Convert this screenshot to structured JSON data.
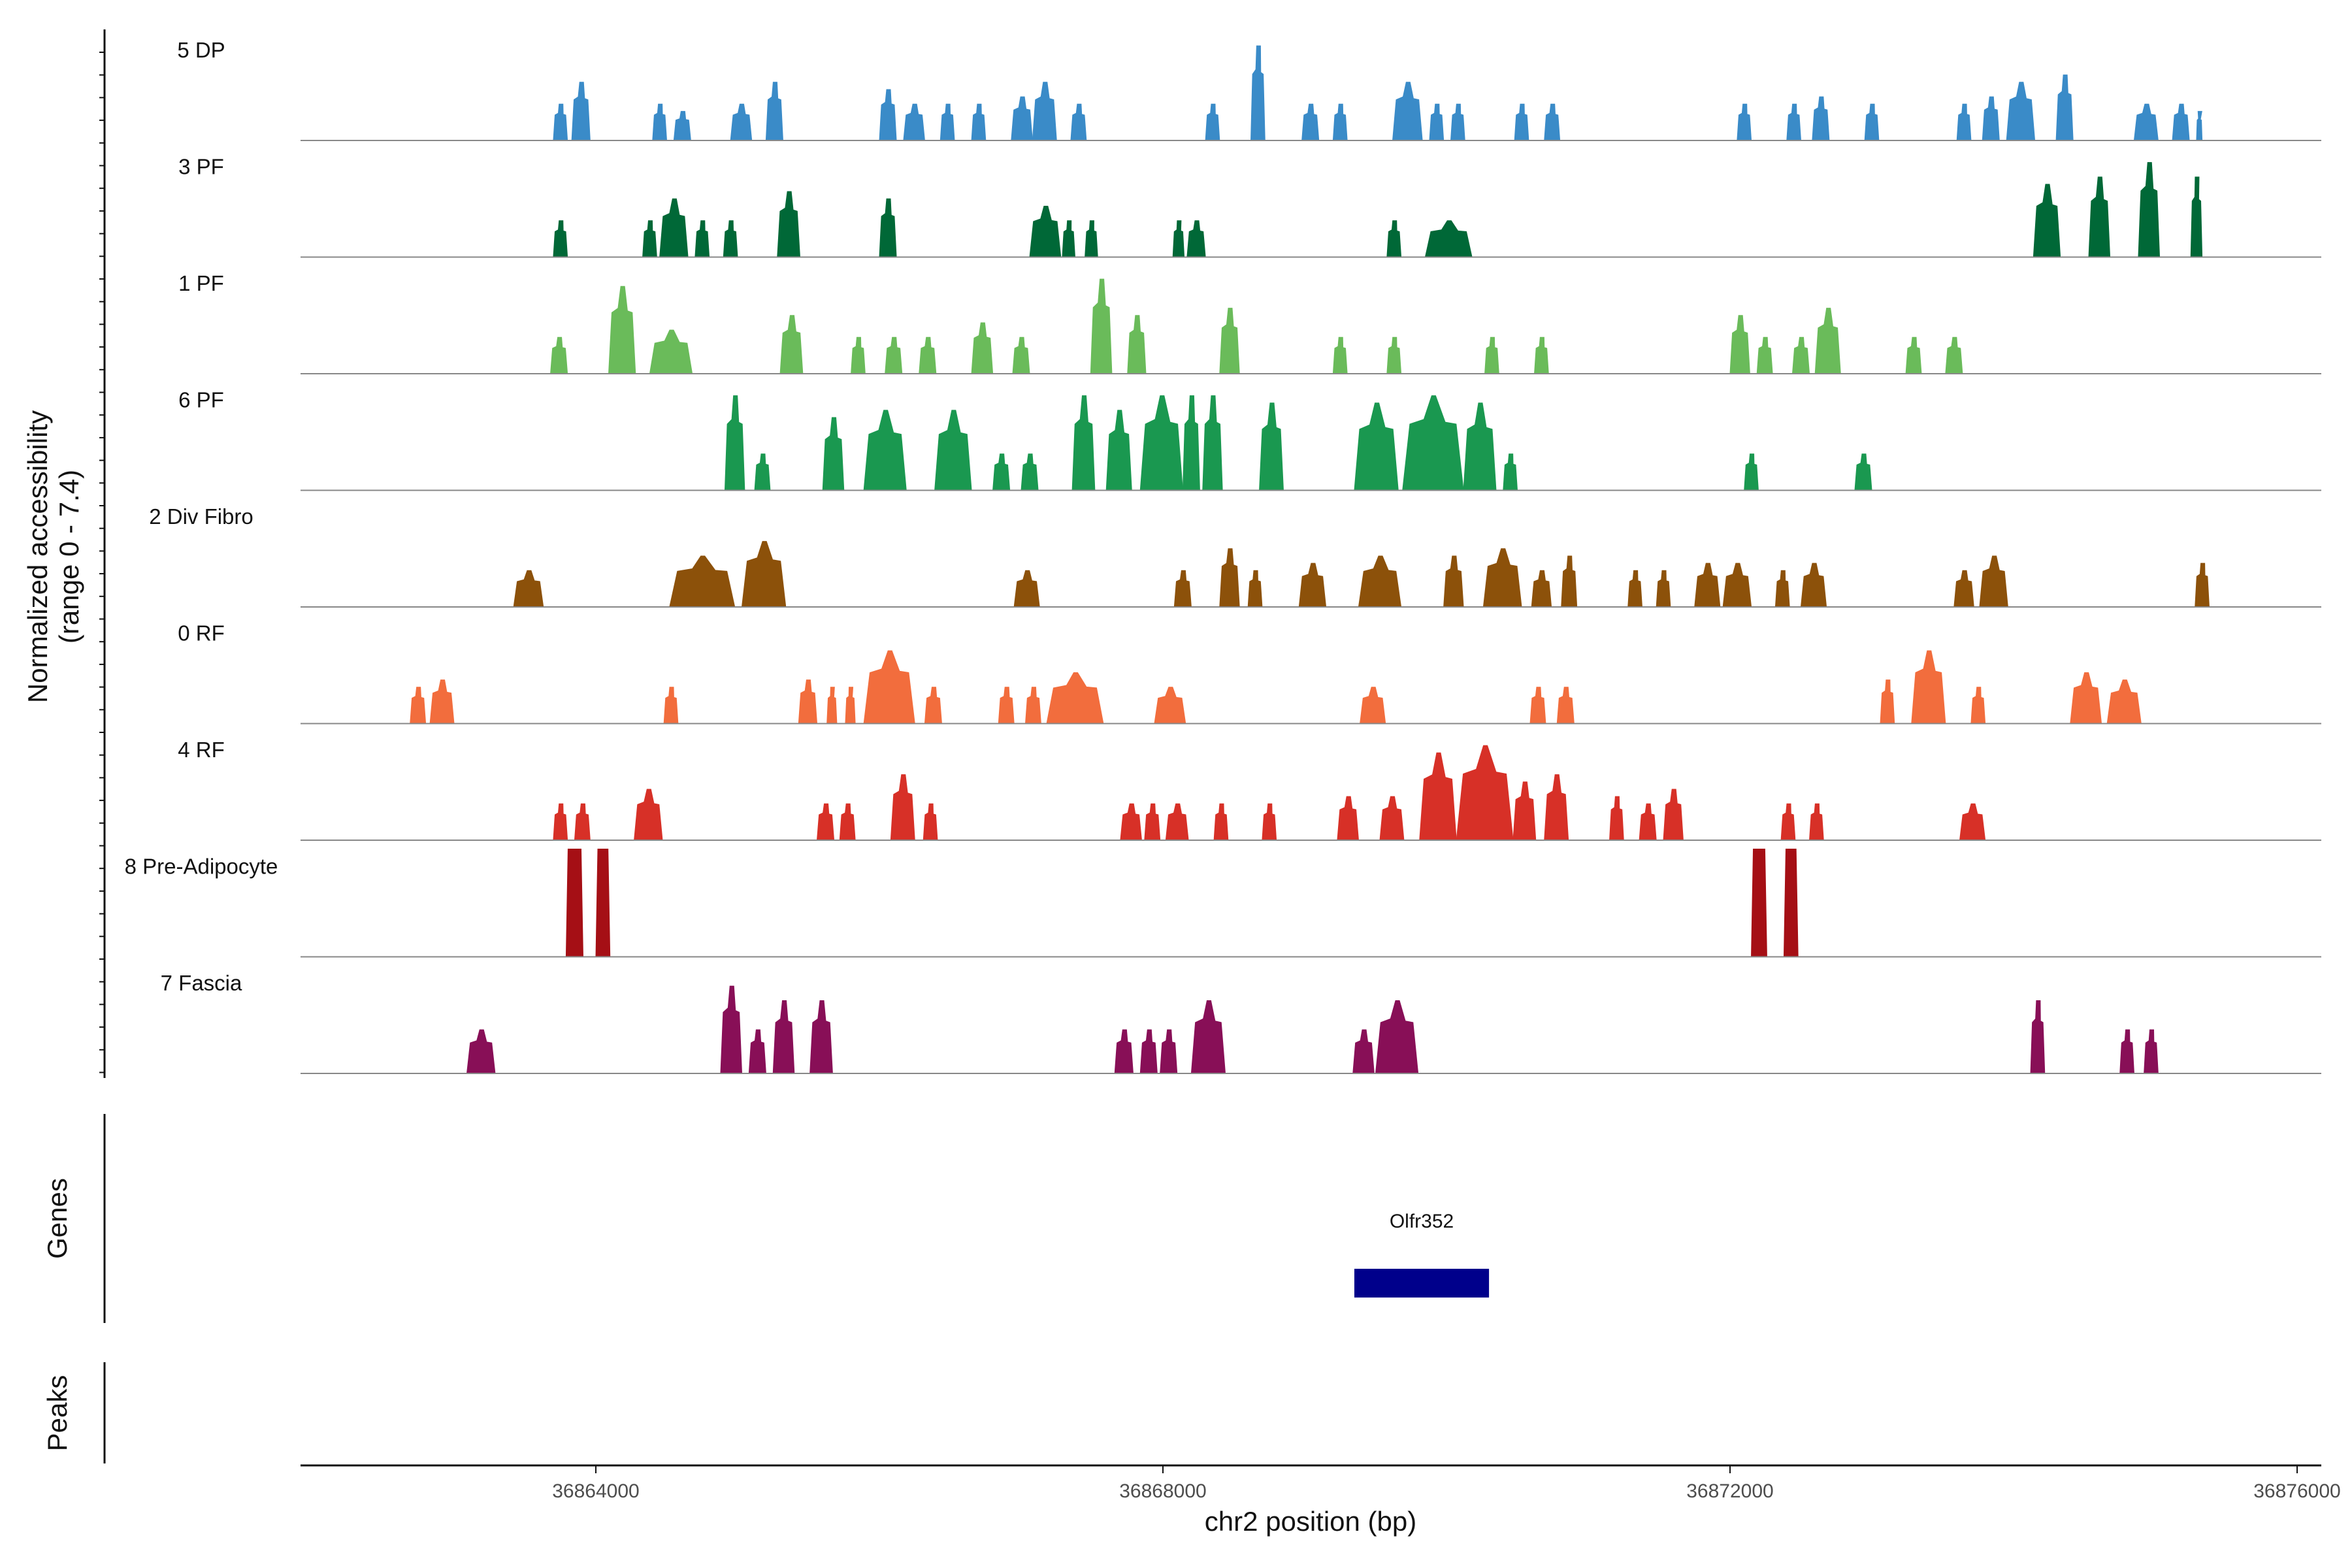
{
  "chart_data": {
    "type": "area",
    "title": "",
    "chromosome": "chr2",
    "xlabel": "chr2 position (bp)",
    "ylabel": "Normalized accessibility",
    "ylabel_range": "(range 0 - 7.4)",
    "xlim": [
      36862000,
      36876000
    ],
    "ylim": [
      0,
      7.4
    ],
    "x_ticks": [
      36864000,
      36868000,
      36872000,
      36876000
    ],
    "x_tick_labels": [
      "36864000",
      "36868000",
      "36872000",
      "36876000"
    ],
    "series": [
      {
        "name": "5 DP",
        "color": "#3A8BC8",
        "peaks": [
          [
            36863700,
            36863800,
            2.5
          ],
          [
            36863830,
            36863960,
            4.0
          ],
          [
            36864400,
            36864500,
            2.5
          ],
          [
            36864550,
            36864670,
            2.0
          ],
          [
            36864950,
            36865100,
            2.5
          ],
          [
            36865200,
            36865320,
            4.0
          ],
          [
            36866000,
            36866120,
            3.5
          ],
          [
            36866170,
            36866320,
            2.5
          ],
          [
            36866430,
            36866530,
            2.5
          ],
          [
            36866650,
            36866750,
            2.5
          ],
          [
            36866930,
            36867080,
            3.0
          ],
          [
            36867080,
            36867250,
            4.0
          ],
          [
            36867350,
            36867460,
            2.5
          ],
          [
            36868300,
            36868400,
            2.5
          ],
          [
            36868620,
            36868720,
            6.5
          ],
          [
            36868980,
            36869100,
            2.5
          ],
          [
            36869200,
            36869300,
            2.5
          ],
          [
            36869620,
            36869830,
            4.0
          ],
          [
            36869880,
            36869980,
            2.5
          ],
          [
            36870030,
            36870130,
            2.5
          ],
          [
            36870480,
            36870580,
            2.5
          ],
          [
            36870690,
            36870800,
            2.5
          ],
          [
            36872050,
            36872150,
            2.5
          ],
          [
            36872400,
            36872500,
            2.5
          ],
          [
            36872580,
            36872700,
            3.0
          ],
          [
            36872950,
            36873050,
            2.5
          ],
          [
            36873600,
            36873700,
            2.5
          ],
          [
            36873780,
            36873900,
            3.0
          ],
          [
            36873950,
            36874150,
            4.0
          ],
          [
            36874300,
            36874420,
            4.5
          ],
          [
            36874850,
            36875020,
            2.5
          ],
          [
            36875120,
            36875240,
            2.5
          ],
          [
            36875290,
            36875330,
            2.0
          ]
        ]
      },
      {
        "name": "3 PF",
        "color": "#006837",
        "peaks": [
          [
            36863700,
            36863800,
            2.5
          ],
          [
            36864330,
            36864430,
            2.5
          ],
          [
            36864450,
            36864650,
            4.0
          ],
          [
            36864700,
            36864800,
            2.5
          ],
          [
            36864900,
            36865000,
            2.5
          ],
          [
            36865280,
            36865440,
            4.5
          ],
          [
            36866000,
            36866120,
            4.0
          ],
          [
            36867060,
            36867280,
            3.5
          ],
          [
            36867290,
            36867380,
            2.5
          ],
          [
            36867450,
            36867540,
            2.5
          ],
          [
            36868070,
            36868150,
            2.5
          ],
          [
            36868170,
            36868300,
            2.5
          ],
          [
            36869580,
            36869680,
            2.5
          ],
          [
            36869850,
            36870180,
            2.5
          ],
          [
            36874140,
            36874330,
            5.0
          ],
          [
            36874530,
            36874680,
            5.5
          ],
          [
            36874880,
            36875030,
            6.5
          ],
          [
            36875250,
            36875330,
            5.5
          ]
        ]
      },
      {
        "name": "1 PF",
        "color": "#6ABB5A",
        "peaks": [
          [
            36863680,
            36863800,
            2.5
          ],
          [
            36864090,
            36864280,
            6.0
          ],
          [
            36864380,
            36864680,
            3.0
          ],
          [
            36865300,
            36865460,
            4.0
          ],
          [
            36865800,
            36865900,
            2.5
          ],
          [
            36866040,
            36866160,
            2.5
          ],
          [
            36866280,
            36866400,
            2.5
          ],
          [
            36866650,
            36866800,
            3.5
          ],
          [
            36866940,
            36867060,
            2.5
          ],
          [
            36867490,
            36867640,
            6.5
          ],
          [
            36867750,
            36867880,
            4.0
          ],
          [
            36868400,
            36868540,
            4.5
          ],
          [
            36869200,
            36869300,
            2.5
          ],
          [
            36869580,
            36869680,
            2.5
          ],
          [
            36870270,
            36870370,
            2.5
          ],
          [
            36870620,
            36870720,
            2.5
          ],
          [
            36872000,
            36872140,
            4.0
          ],
          [
            36872190,
            36872300,
            2.5
          ],
          [
            36872440,
            36872560,
            2.5
          ],
          [
            36872600,
            36872780,
            4.5
          ],
          [
            36873240,
            36873350,
            2.5
          ],
          [
            36873520,
            36873640,
            2.5
          ]
        ]
      },
      {
        "name": "6 PF",
        "color": "#1A9850",
        "peaks": [
          [
            36864910,
            36865050,
            6.5
          ],
          [
            36865120,
            36865230,
            2.5
          ],
          [
            36865600,
            36865750,
            5.0
          ],
          [
            36865890,
            36866190,
            5.5
          ],
          [
            36866390,
            36866650,
            5.5
          ],
          [
            36866800,
            36866920,
            2.5
          ],
          [
            36867000,
            36867120,
            2.5
          ],
          [
            36867360,
            36867520,
            6.5
          ],
          [
            36867600,
            36867780,
            5.5
          ],
          [
            36867840,
            36868140,
            6.5
          ],
          [
            36868140,
            36868260,
            6.5
          ],
          [
            36868280,
            36868420,
            6.5
          ],
          [
            36868680,
            36868850,
            6.0
          ],
          [
            36869350,
            36869660,
            6.0
          ],
          [
            36869690,
            36870120,
            6.5
          ],
          [
            36870120,
            36870350,
            6.0
          ],
          [
            36870400,
            36870500,
            2.5
          ],
          [
            36872100,
            36872200,
            2.5
          ],
          [
            36872880,
            36873000,
            2.5
          ]
        ]
      },
      {
        "name": "2 Div Fibro",
        "color": "#8C510A",
        "peaks": [
          [
            36863420,
            36863630,
            2.5
          ],
          [
            36864520,
            36864980,
            3.5
          ],
          [
            36865030,
            36865340,
            4.5
          ],
          [
            36866950,
            36867130,
            2.5
          ],
          [
            36868080,
            36868200,
            2.5
          ],
          [
            36868400,
            36868540,
            4.0
          ],
          [
            36868600,
            36868700,
            2.5
          ],
          [
            36868960,
            36869150,
            3.0
          ],
          [
            36869380,
            36869680,
            3.5
          ],
          [
            36869980,
            36870120,
            3.5
          ],
          [
            36870260,
            36870530,
            4.0
          ],
          [
            36870600,
            36870740,
            2.5
          ],
          [
            36870810,
            36870920,
            3.5
          ],
          [
            36871280,
            36871380,
            2.5
          ],
          [
            36871480,
            36871580,
            2.5
          ],
          [
            36871750,
            36871930,
            3.0
          ],
          [
            36871950,
            36872150,
            3.0
          ],
          [
            36872320,
            36872420,
            2.5
          ],
          [
            36872500,
            36872680,
            3.0
          ],
          [
            36873580,
            36873720,
            2.5
          ],
          [
            36873760,
            36873960,
            3.5
          ],
          [
            36875280,
            36875380,
            3.0
          ]
        ]
      },
      {
        "name": "0 RF",
        "color": "#F26D3D",
        "peaks": [
          [
            36862690,
            36862800,
            2.5
          ],
          [
            36862830,
            36863000,
            3.0
          ],
          [
            36864480,
            36864580,
            2.5
          ],
          [
            36865430,
            36865560,
            3.0
          ],
          [
            36865630,
            36865700,
            2.5
          ],
          [
            36865760,
            36865830,
            2.5
          ],
          [
            36865890,
            36866250,
            5.0
          ],
          [
            36866320,
            36866440,
            2.5
          ],
          [
            36866840,
            36866950,
            2.5
          ],
          [
            36867030,
            36867140,
            2.5
          ],
          [
            36867180,
            36867580,
            3.5
          ],
          [
            36867940,
            36868160,
            2.5
          ],
          [
            36869390,
            36869570,
            2.5
          ],
          [
            36870590,
            36870700,
            2.5
          ],
          [
            36870780,
            36870900,
            2.5
          ],
          [
            36873060,
            36873160,
            3.0
          ],
          [
            36873280,
            36873520,
            5.0
          ],
          [
            36873700,
            36873800,
            2.5
          ],
          [
            36874400,
            36874620,
            3.5
          ],
          [
            36874660,
            36874900,
            3.0
          ]
        ]
      },
      {
        "name": "4 RF",
        "color": "#D73027",
        "peaks": [
          [
            36863700,
            36863800,
            2.5
          ],
          [
            36863850,
            36863960,
            2.5
          ],
          [
            36864270,
            36864470,
            3.5
          ],
          [
            36865560,
            36865680,
            2.5
          ],
          [
            36865720,
            36865830,
            2.5
          ],
          [
            36866080,
            36866250,
            4.5
          ],
          [
            36866310,
            36866410,
            2.5
          ],
          [
            36867700,
            36867850,
            2.5
          ],
          [
            36867870,
            36867980,
            2.5
          ],
          [
            36868020,
            36868180,
            2.5
          ],
          [
            36868360,
            36868460,
            2.5
          ],
          [
            36868700,
            36868800,
            2.5
          ],
          [
            36869230,
            36869380,
            3.0
          ],
          [
            36869530,
            36869700,
            3.0
          ],
          [
            36869810,
            36870070,
            6.0
          ],
          [
            36870070,
            36870470,
            6.5
          ],
          [
            36870470,
            36870630,
            4.0
          ],
          [
            36870690,
            36870860,
            4.5
          ],
          [
            36871150,
            36871250,
            3.0
          ],
          [
            36871360,
            36871480,
            2.5
          ],
          [
            36871530,
            36871670,
            3.5
          ],
          [
            36872360,
            36872460,
            2.5
          ],
          [
            36872560,
            36872660,
            2.5
          ],
          [
            36873620,
            36873800,
            2.5
          ]
        ]
      },
      {
        "name": "8 Pre-Adipocyte",
        "color": "#A50F15",
        "peaks": [
          [
            36863790,
            36863910,
            7.4
          ],
          [
            36864000,
            36864100,
            7.4
          ],
          [
            36872150,
            36872260,
            7.4
          ],
          [
            36872380,
            36872480,
            7.4
          ]
        ]
      },
      {
        "name": "7 Fascia",
        "color": "#880F57",
        "peaks": [
          [
            36863090,
            36863290,
            3.0
          ],
          [
            36864880,
            36865030,
            6.0
          ],
          [
            36865080,
            36865200,
            3.0
          ],
          [
            36865250,
            36865400,
            5.0
          ],
          [
            36865510,
            36865670,
            5.0
          ],
          [
            36867660,
            36867790,
            3.0
          ],
          [
            36867840,
            36867960,
            3.0
          ],
          [
            36867980,
            36868100,
            3.0
          ],
          [
            36868200,
            36868440,
            5.0
          ],
          [
            36869340,
            36869490,
            3.0
          ],
          [
            36869500,
            36869800,
            5.0
          ],
          [
            36874120,
            36874220,
            5.0
          ],
          [
            36874750,
            36874850,
            3.0
          ],
          [
            36874920,
            36875020,
            3.0
          ]
        ]
      }
    ],
    "genes": [
      {
        "name": "Olfr352",
        "start": 36869350,
        "end": 36870300
      }
    ],
    "panels": [
      "Genes",
      "Peaks"
    ]
  }
}
